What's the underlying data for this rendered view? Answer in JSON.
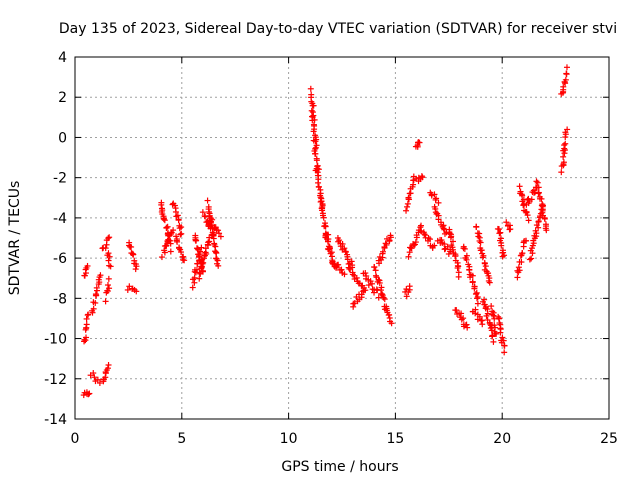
{
  "chart_data": {
    "type": "scatter",
    "title": "Day 135 of 2023, Sidereal Day-to-day VTEC variation (SDTVAR) for receiver stvi",
    "xlabel": "GPS time / hours",
    "ylabel": "SDTVAR / TECUs",
    "xlim": [
      0,
      25
    ],
    "ylim": [
      -14,
      4
    ],
    "xticks": [
      0,
      5,
      10,
      15,
      20,
      25
    ],
    "yticks": [
      -14,
      -12,
      -10,
      -8,
      -6,
      -4,
      -2,
      0,
      2,
      4
    ],
    "grid": true,
    "marker": "+",
    "color": "#ff0000",
    "series": [
      {
        "name": "SDTVAR",
        "segments": [
          {
            "x": [
              0.45,
              0.65
            ],
            "y": [
              -12.9,
              -12.6
            ]
          },
          {
            "x": [
              0.45,
              0.6
            ],
            "y": [
              -10.2,
              -8.8
            ]
          },
          {
            "x": [
              0.45,
              0.55
            ],
            "y": [
              -6.8,
              -6.5
            ]
          },
          {
            "x": [
              0.75,
              1.15
            ],
            "y": [
              -11.8,
              -12.1
            ]
          },
          {
            "x": [
              0.8,
              1.2
            ],
            "y": [
              -8.6,
              -7.0
            ]
          },
          {
            "x": [
              1.3,
              1.55
            ],
            "y": [
              -12.2,
              -11.2
            ]
          },
          {
            "x": [
              1.3,
              1.6
            ],
            "y": [
              -5.5,
              -5.0
            ]
          },
          {
            "x": [
              1.45,
              1.6
            ],
            "y": [
              -8.0,
              -7.2
            ]
          },
          {
            "x": [
              1.55,
              1.65
            ],
            "y": [
              -5.8,
              -6.3
            ]
          },
          {
            "x": [
              2.5,
              2.9
            ],
            "y": [
              -7.5,
              -7.8
            ]
          },
          {
            "x": [
              2.5,
              2.9
            ],
            "y": [
              -5.2,
              -6.5
            ]
          },
          {
            "x": [
              4.0,
              4.5
            ],
            "y": [
              -3.2,
              -5.5
            ]
          },
          {
            "x": [
              4.1,
              4.6
            ],
            "y": [
              -5.8,
              -4.5
            ]
          },
          {
            "x": [
              4.6,
              5.0
            ],
            "y": [
              -3.3,
              -4.8
            ]
          },
          {
            "x": [
              4.7,
              5.1
            ],
            "y": [
              -5.0,
              -6.2
            ]
          },
          {
            "x": [
              5.5,
              5.9
            ],
            "y": [
              -7.3,
              -5.5
            ]
          },
          {
            "x": [
              5.6,
              6.0
            ],
            "y": [
              -4.8,
              -6.8
            ]
          },
          {
            "x": [
              5.8,
              6.3
            ],
            "y": [
              -7.0,
              -5.0
            ]
          },
          {
            "x": [
              6.0,
              6.5
            ],
            "y": [
              -3.8,
              -4.8
            ]
          },
          {
            "x": [
              6.2,
              6.7
            ],
            "y": [
              -3.3,
              -6.5
            ]
          },
          {
            "x": [
              6.3,
              6.8
            ],
            "y": [
              -4.0,
              -4.8
            ]
          },
          {
            "x": [
              11.05,
              11.2
            ],
            "y": [
              2.3,
              1.0
            ]
          },
          {
            "x": [
              11.1,
              11.3
            ],
            "y": [
              1.2,
              -0.5
            ]
          },
          {
            "x": [
              11.2,
              11.4
            ],
            "y": [
              -0.3,
              -1.8
            ]
          },
          {
            "x": [
              11.3,
              11.6
            ],
            "y": [
              -1.5,
              -3.5
            ]
          },
          {
            "x": [
              11.5,
              11.9
            ],
            "y": [
              -3.0,
              -5.5
            ]
          },
          {
            "x": [
              11.7,
              12.2
            ],
            "y": [
              -4.8,
              -6.5
            ]
          },
          {
            "x": [
              12.0,
              12.6
            ],
            "y": [
              -6.0,
              -6.8
            ]
          },
          {
            "x": [
              12.3,
              13.0
            ],
            "y": [
              -5.0,
              -6.5
            ]
          },
          {
            "x": [
              12.8,
              13.5
            ],
            "y": [
              -6.5,
              -7.5
            ]
          },
          {
            "x": [
              13.0,
              13.6
            ],
            "y": [
              -8.3,
              -7.5
            ]
          },
          {
            "x": [
              13.5,
              14.2
            ],
            "y": [
              -6.8,
              -7.8
            ]
          },
          {
            "x": [
              14.0,
              14.6
            ],
            "y": [
              -6.5,
              -8.6
            ]
          },
          {
            "x": [
              14.2,
              14.8
            ],
            "y": [
              -6.2,
              -4.8
            ]
          },
          {
            "x": [
              14.6,
              14.8
            ],
            "y": [
              -8.5,
              -9.3
            ]
          },
          {
            "x": [
              15.45,
              15.7
            ],
            "y": [
              -7.8,
              -7.5
            ]
          },
          {
            "x": [
              15.5,
              15.9
            ],
            "y": [
              -3.5,
              -2.0
            ]
          },
          {
            "x": [
              15.6,
              16.2
            ],
            "y": [
              -5.8,
              -4.5
            ]
          },
          {
            "x": [
              16.0,
              16.3
            ],
            "y": [
              -2.2,
              -2.0
            ]
          },
          {
            "x": [
              16.0,
              16.1
            ],
            "y": [
              -0.4,
              -0.3
            ]
          },
          {
            "x": [
              16.2,
              16.8
            ],
            "y": [
              -4.5,
              -5.5
            ]
          },
          {
            "x": [
              16.6,
              17.0
            ],
            "y": [
              -2.8,
              -3.2
            ]
          },
          {
            "x": [
              16.8,
              17.4
            ],
            "y": [
              -3.5,
              -4.8
            ]
          },
          {
            "x": [
              17.0,
              17.6
            ],
            "y": [
              -5.0,
              -5.8
            ]
          },
          {
            "x": [
              17.5,
              18.0
            ],
            "y": [
              -4.5,
              -6.8
            ]
          },
          {
            "x": [
              17.8,
              18.4
            ],
            "y": [
              -8.5,
              -9.5
            ]
          },
          {
            "x": [
              18.2,
              18.9
            ],
            "y": [
              -5.5,
              -8.2
            ]
          },
          {
            "x": [
              18.6,
              19.1
            ],
            "y": [
              -8.5,
              -9.2
            ]
          },
          {
            "x": [
              18.8,
              19.4
            ],
            "y": [
              -4.5,
              -7.2
            ]
          },
          {
            "x": [
              19.1,
              19.6
            ],
            "y": [
              -8.0,
              -10.0
            ]
          },
          {
            "x": [
              19.5,
              19.7
            ],
            "y": [
              -8.5,
              -9.8
            ]
          },
          {
            "x": [
              19.8,
              20.1
            ],
            "y": [
              -4.5,
              -6.0
            ]
          },
          {
            "x": [
              19.8,
              20.1
            ],
            "y": [
              -8.8,
              -10.6
            ]
          },
          {
            "x": [
              20.2,
              20.4
            ],
            "y": [
              -4.3,
              -4.5
            ]
          },
          {
            "x": [
              20.7,
              21.1
            ],
            "y": [
              -6.8,
              -5.0
            ]
          },
          {
            "x": [
              20.8,
              21.2
            ],
            "y": [
              -2.5,
              -4.0
            ]
          },
          {
            "x": [
              21.0,
              21.6
            ],
            "y": [
              -3.5,
              -2.5
            ]
          },
          {
            "x": [
              21.3,
              21.9
            ],
            "y": [
              -6.0,
              -3.5
            ]
          },
          {
            "x": [
              21.6,
              22.1
            ],
            "y": [
              -2.2,
              -4.5
            ]
          },
          {
            "x": [
              22.8,
              23.0
            ],
            "y": [
              2.0,
              3.4
            ]
          },
          {
            "x": [
              22.8,
              23.0
            ],
            "y": [
              -1.7,
              0.3
            ]
          }
        ]
      }
    ]
  }
}
